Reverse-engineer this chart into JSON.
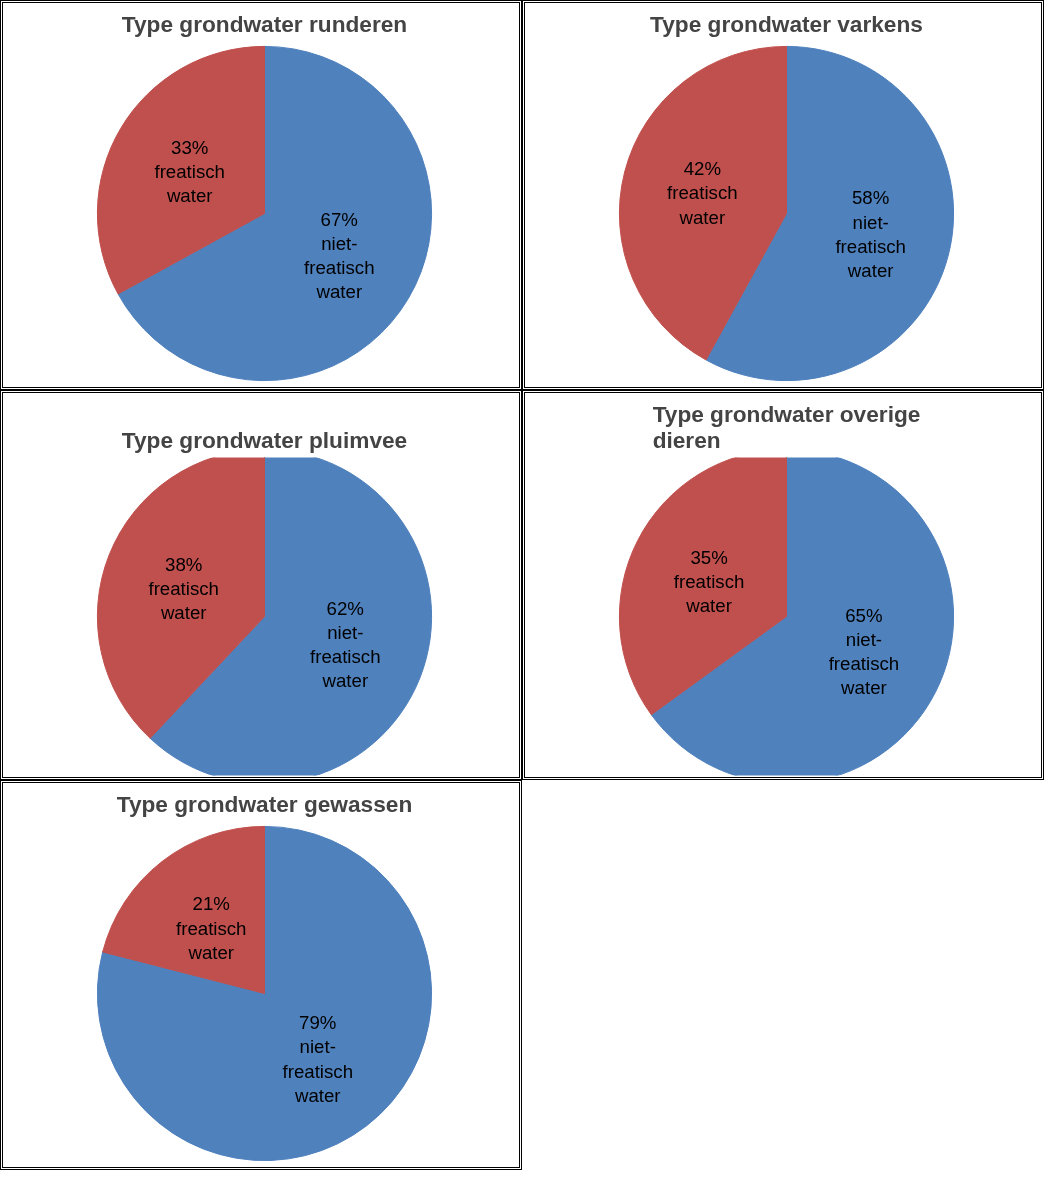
{
  "chart_data": [
    {
      "type": "pie",
      "title": "Type grondwater runderen",
      "categories": [
        "niet-freatisch water",
        "freatisch water"
      ],
      "values": [
        67,
        33
      ],
      "colors": [
        "#4f81bd",
        "#c0504d"
      ],
      "value_labels": [
        "67%",
        "33%"
      ]
    },
    {
      "type": "pie",
      "title": "Type grondwater varkens",
      "categories": [
        "niet-freatisch water",
        "freatisch water"
      ],
      "values": [
        58,
        42
      ],
      "colors": [
        "#4f81bd",
        "#c0504d"
      ],
      "value_labels": [
        "58%",
        "42%"
      ]
    },
    {
      "type": "pie",
      "title": "Type grondwater pluimvee",
      "categories": [
        "niet-freatisch water",
        "freatisch water"
      ],
      "values": [
        62,
        38
      ],
      "colors": [
        "#4f81bd",
        "#c0504d"
      ],
      "value_labels": [
        "62%",
        "38%"
      ]
    },
    {
      "type": "pie",
      "title": "Type grondwater overige dieren",
      "categories": [
        "niet-freatisch water",
        "freatisch water"
      ],
      "values": [
        65,
        35
      ],
      "colors": [
        "#4f81bd",
        "#c0504d"
      ],
      "value_labels": [
        "65%",
        "35%"
      ]
    },
    {
      "type": "pie",
      "title": "Type grondwater gewassen",
      "categories": [
        "niet-freatisch water",
        "freatisch water"
      ],
      "values": [
        79,
        21
      ],
      "colors": [
        "#4f81bd",
        "#c0504d"
      ],
      "value_labels": [
        "79%",
        "21%"
      ]
    }
  ]
}
